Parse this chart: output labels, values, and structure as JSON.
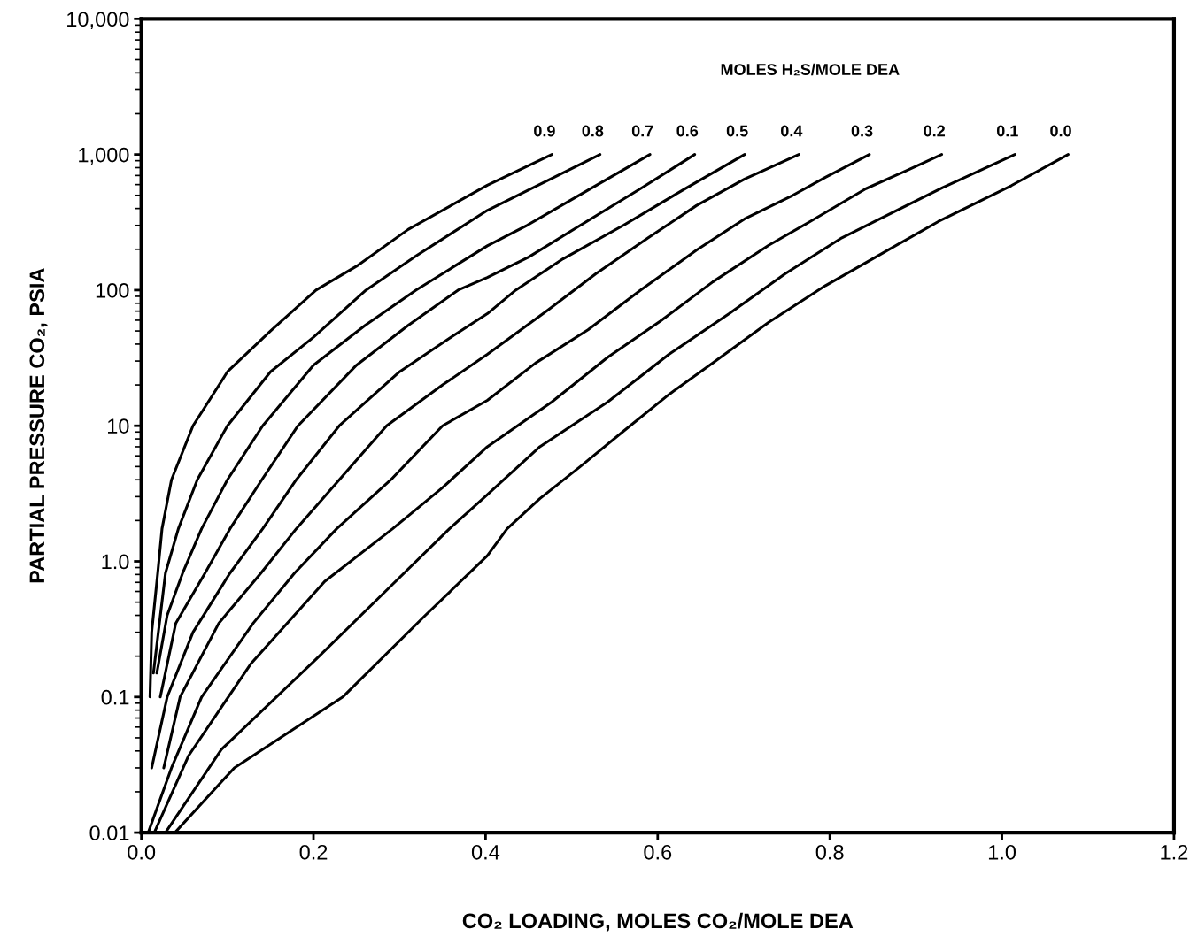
{
  "chart_data": {
    "type": "line",
    "xlabel": "CO₂ LOADING, MOLES CO₂/MOLE DEA",
    "ylabel": "PARTIAL PRESSURE CO₂, PSIA",
    "legend_title": "MOLES H₂S/MOLE DEA",
    "log": "y",
    "xlim": [
      0,
      1.2
    ],
    "xticks": [
      {
        "value": 0,
        "label": "0.0"
      },
      {
        "value": 0.2,
        "label": "0.2"
      },
      {
        "value": 0.4,
        "label": "0.4"
      },
      {
        "value": 0.6,
        "label": "0.6"
      },
      {
        "value": 0.8,
        "label": "0.8"
      },
      {
        "value": 1.0,
        "label": "1.0"
      },
      {
        "value": 1.2,
        "label": "1.2"
      }
    ],
    "ylim": [
      0.01,
      10000
    ],
    "yticks": [
      0.01,
      0.1,
      {
        "value": 1,
        "label": "1.0"
      },
      10,
      100,
      {
        "value": 1000,
        "label": "1,000"
      },
      {
        "value": 10000,
        "label": "10,000"
      }
    ],
    "grid": false,
    "marker": "none",
    "line_style": "solid",
    "series": [
      {
        "name": "0.9",
        "color": "#000000",
        "x": [
          0.01,
          0.012,
          0.019,
          0.024,
          0.035,
          0.06,
          0.1,
          0.15,
          0.203,
          0.25,
          0.31,
          0.402,
          0.477
        ],
        "values": [
          0.1,
          0.3,
          0.82,
          1.74,
          4,
          10,
          25,
          50,
          100,
          150,
          280,
          594,
          1000
        ]
      },
      {
        "name": "0.8",
        "color": "#000000",
        "x": [
          0.014,
          0.028,
          0.043,
          0.065,
          0.1,
          0.15,
          0.2,
          0.261,
          0.32,
          0.402,
          0.533
        ],
        "values": [
          0.15,
          0.82,
          1.74,
          4,
          10,
          25,
          45,
          100,
          180,
          387,
          1000
        ]
      },
      {
        "name": "0.7",
        "color": "#000000",
        "x": [
          0.018,
          0.03,
          0.048,
          0.07,
          0.1,
          0.141,
          0.2,
          0.26,
          0.319,
          0.402,
          0.448,
          0.52,
          0.591
        ],
        "values": [
          0.15,
          0.4,
          0.82,
          1.74,
          4,
          10,
          28,
          55,
          100,
          212,
          300,
          550,
          1000
        ]
      },
      {
        "name": "0.6",
        "color": "#000000",
        "x": [
          0.022,
          0.04,
          0.074,
          0.103,
          0.14,
          0.182,
          0.25,
          0.31,
          0.368,
          0.402,
          0.45,
          0.51,
          0.58,
          0.643
        ],
        "values": [
          0.1,
          0.35,
          0.82,
          1.74,
          4,
          10,
          28,
          55,
          100,
          124,
          175,
          300,
          560,
          1000
        ]
      },
      {
        "name": "0.5",
        "color": "#000000",
        "x": [
          0.012,
          0.03,
          0.06,
          0.103,
          0.141,
          0.18,
          0.23,
          0.3,
          0.36,
          0.402,
          0.435,
          0.49,
          0.56,
          0.63,
          0.701
        ],
        "values": [
          0.03,
          0.1,
          0.3,
          0.82,
          1.74,
          4,
          10,
          25,
          45,
          67,
          100,
          170,
          300,
          550,
          1000
        ]
      },
      {
        "name": "0.4",
        "color": "#000000",
        "x": [
          0.026,
          0.045,
          0.09,
          0.139,
          0.18,
          0.23,
          0.285,
          0.35,
          0.402,
          0.472,
          0.528,
          0.589,
          0.645,
          0.701,
          0.764
        ],
        "values": [
          0.03,
          0.1,
          0.35,
          0.82,
          1.74,
          4,
          10,
          20,
          33.6,
          71,
          132,
          243,
          420,
          660,
          1000
        ]
      },
      {
        "name": "0.3",
        "color": "#000000",
        "x": [
          0.008,
          0.035,
          0.07,
          0.13,
          0.178,
          0.227,
          0.29,
          0.35,
          0.402,
          0.458,
          0.519,
          0.58,
          0.645,
          0.701,
          0.757,
          0.795,
          0.846
        ],
        "values": [
          0.01,
          0.03,
          0.1,
          0.35,
          0.82,
          1.74,
          4,
          10,
          15.4,
          29,
          51,
          100,
          197,
          335,
          500,
          680,
          1000
        ]
      },
      {
        "name": "0.2",
        "color": "#000000",
        "x": [
          0.015,
          0.055,
          0.127,
          0.213,
          0.292,
          0.35,
          0.402,
          0.477,
          0.542,
          0.603,
          0.664,
          0.729,
          0.777,
          0.842,
          0.893,
          0.93
        ],
        "values": [
          0.01,
          0.037,
          0.175,
          0.71,
          1.74,
          3.5,
          7.0,
          15,
          32,
          59,
          115,
          214,
          320,
          560,
          780,
          1000
        ]
      },
      {
        "name": "0.1",
        "color": "#000000",
        "x": [
          0.028,
          0.093,
          0.203,
          0.288,
          0.358,
          0.402,
          0.463,
          0.542,
          0.613,
          0.683,
          0.748,
          0.814,
          0.851,
          0.931,
          1.015
        ],
        "values": [
          0.01,
          0.041,
          0.19,
          0.64,
          1.74,
          3.1,
          7.0,
          15,
          33.6,
          67,
          132,
          243,
          318,
          570,
          1000
        ]
      },
      {
        "name": "0.0",
        "color": "#000000",
        "x": [
          0.039,
          0.108,
          0.234,
          0.33,
          0.402,
          0.425,
          0.463,
          0.51,
          0.561,
          0.613,
          0.664,
          0.729,
          0.795,
          0.851,
          0.926,
          1.011,
          1.077
        ],
        "values": [
          0.01,
          0.03,
          0.1,
          0.4,
          1.1,
          1.74,
          2.9,
          5.0,
          9.2,
          17,
          29,
          58,
          108,
          172,
          320,
          590,
          1000
        ]
      }
    ]
  }
}
